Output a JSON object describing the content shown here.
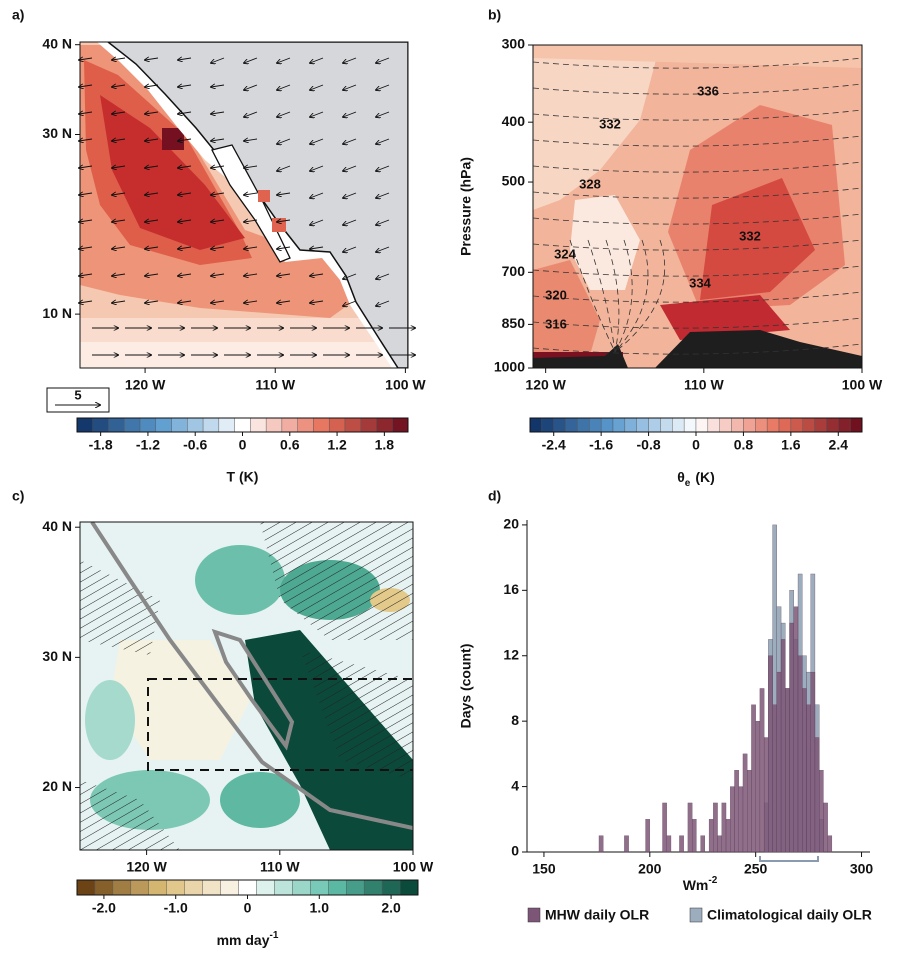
{
  "chart_data": [
    {
      "type": "map",
      "panel": "a)",
      "xlim": [
        -125,
        -99.8
      ],
      "ylim": [
        4,
        40.3
      ],
      "xticks": [
        {
          "value": -120,
          "label": "120 W"
        },
        {
          "value": -110,
          "label": "110 W"
        },
        {
          "value": -100,
          "label": "100 W"
        }
      ],
      "yticks": [
        {
          "value": 40,
          "label": "40 N"
        },
        {
          "value": 30,
          "label": "30 N"
        },
        {
          "value": 10,
          "label": "10 N"
        }
      ],
      "reference_vector": 5,
      "colorbar": {
        "lim": [
          -2.1,
          2.1
        ],
        "step": 0.2,
        "ticks": [
          -1.8,
          -1.2,
          -0.6,
          0,
          0.6,
          1.2,
          1.8
        ],
        "label": "T (K)",
        "colors": [
          "#0c2d62",
          "#5b9bd0",
          "#ffffff",
          "#e7705a",
          "#680a1c"
        ]
      }
    },
    {
      "type": "contour",
      "panel": "b)",
      "xlim": [
        -120.8,
        -100
      ],
      "ylim": [
        1000,
        300
      ],
      "yscale": "log",
      "ylabel": "Pressure (hPa)",
      "xticks": [
        {
          "value": -120,
          "label": "120 W"
        },
        {
          "value": -110,
          "label": "110 W"
        },
        {
          "value": -100,
          "label": "100 W"
        }
      ],
      "yticks": [
        300,
        400,
        500,
        700,
        850,
        1000
      ],
      "contour_labels": [
        336,
        332,
        328,
        332,
        324,
        334,
        320,
        316
      ],
      "colorbar": {
        "lim": [
          -2.8,
          2.8
        ],
        "step": 0.2,
        "ticks": [
          -2.4,
          -1.6,
          -0.8,
          0,
          0.8,
          1.6,
          2.4
        ],
        "label": {
          "symbol": "θ",
          "subscript": "e",
          "unit": "(K)"
        },
        "colors": [
          "#0c2d62",
          "#5b9bd0",
          "#ffffff",
          "#e7705a",
          "#680a1c"
        ]
      }
    },
    {
      "type": "map",
      "panel": "c)",
      "xlim": [
        -125,
        -100
      ],
      "ylim": [
        15.2,
        40.4
      ],
      "xticks": [
        {
          "value": -120,
          "label": "120 W"
        },
        {
          "value": -110,
          "label": "110 W"
        },
        {
          "value": -100,
          "label": "100 W"
        }
      ],
      "yticks": [
        {
          "value": 40,
          "label": "40 N"
        },
        {
          "value": 30,
          "label": "30 N"
        },
        {
          "value": 20,
          "label": "20 N"
        }
      ],
      "colorbar": {
        "lim": [
          -2.375,
          2.375
        ],
        "step": 0.25,
        "ticks": [
          {
            "value": -2,
            "label": "-2.0"
          },
          {
            "value": -1,
            "label": "-1.0"
          },
          0,
          {
            "value": 1,
            "label": "1.0"
          },
          {
            "value": 2,
            "label": "2.0"
          }
        ],
        "label": {
          "text": "mm day",
          "superscript": "-1"
        },
        "colors": [
          "#5e3508",
          "#dcbd77",
          "#ffffff",
          "#5fbfaa",
          "#003d2e"
        ]
      }
    },
    {
      "type": "histogram",
      "panel": "d)",
      "ylabel": "Days (count)",
      "xlabel": {
        "text": "Wm",
        "superscript": "-2"
      },
      "bins": [
        176,
        178,
        180,
        182,
        184,
        186,
        188,
        190,
        192,
        194,
        196,
        198,
        200,
        202,
        204,
        206,
        208,
        210,
        212,
        214,
        216,
        218,
        220,
        222,
        224,
        226,
        228,
        230,
        232,
        234,
        236,
        238,
        240,
        242,
        244,
        246,
        248,
        250,
        252,
        254,
        256,
        258,
        260,
        262,
        264,
        266,
        268,
        270,
        272,
        274,
        276,
        278,
        280,
        282,
        284,
        286
      ],
      "series": [
        {
          "name": "Climatological daily OLR",
          "color": "#9cadbe",
          "values": [
            0,
            0,
            0,
            0,
            0,
            0,
            0,
            0,
            0,
            0,
            0,
            0,
            0,
            0,
            0,
            0,
            0,
            0,
            0,
            0,
            0,
            0,
            0,
            0,
            0,
            0,
            0,
            0,
            0,
            0,
            0,
            0,
            0,
            0,
            0,
            0,
            0,
            0,
            0,
            3,
            13,
            20,
            15,
            14,
            10,
            16,
            13,
            17,
            12,
            11,
            17,
            9,
            2,
            0,
            0
          ]
        },
        {
          "name": "MHW daily OLR",
          "color": "#7d5677",
          "values": [
            1,
            0,
            0,
            0,
            0,
            0,
            1,
            0,
            0,
            0,
            0,
            2,
            0,
            0,
            0,
            3,
            1,
            0,
            0,
            1,
            0,
            3,
            2,
            0,
            1,
            0,
            2,
            3,
            1,
            3,
            2,
            4,
            5,
            4,
            6,
            5,
            9,
            8,
            10,
            7,
            12,
            9,
            11,
            13,
            10,
            14,
            15,
            12,
            10,
            9,
            11,
            7,
            5,
            3,
            1
          ]
        }
      ],
      "legend_order": [
        1,
        0
      ],
      "xlim": [
        142,
        304
      ],
      "ylim": [
        0,
        20.3
      ],
      "xticks": [
        150,
        200,
        250,
        300
      ],
      "yticks": [
        0,
        4,
        8,
        12,
        16,
        20
      ]
    }
  ]
}
